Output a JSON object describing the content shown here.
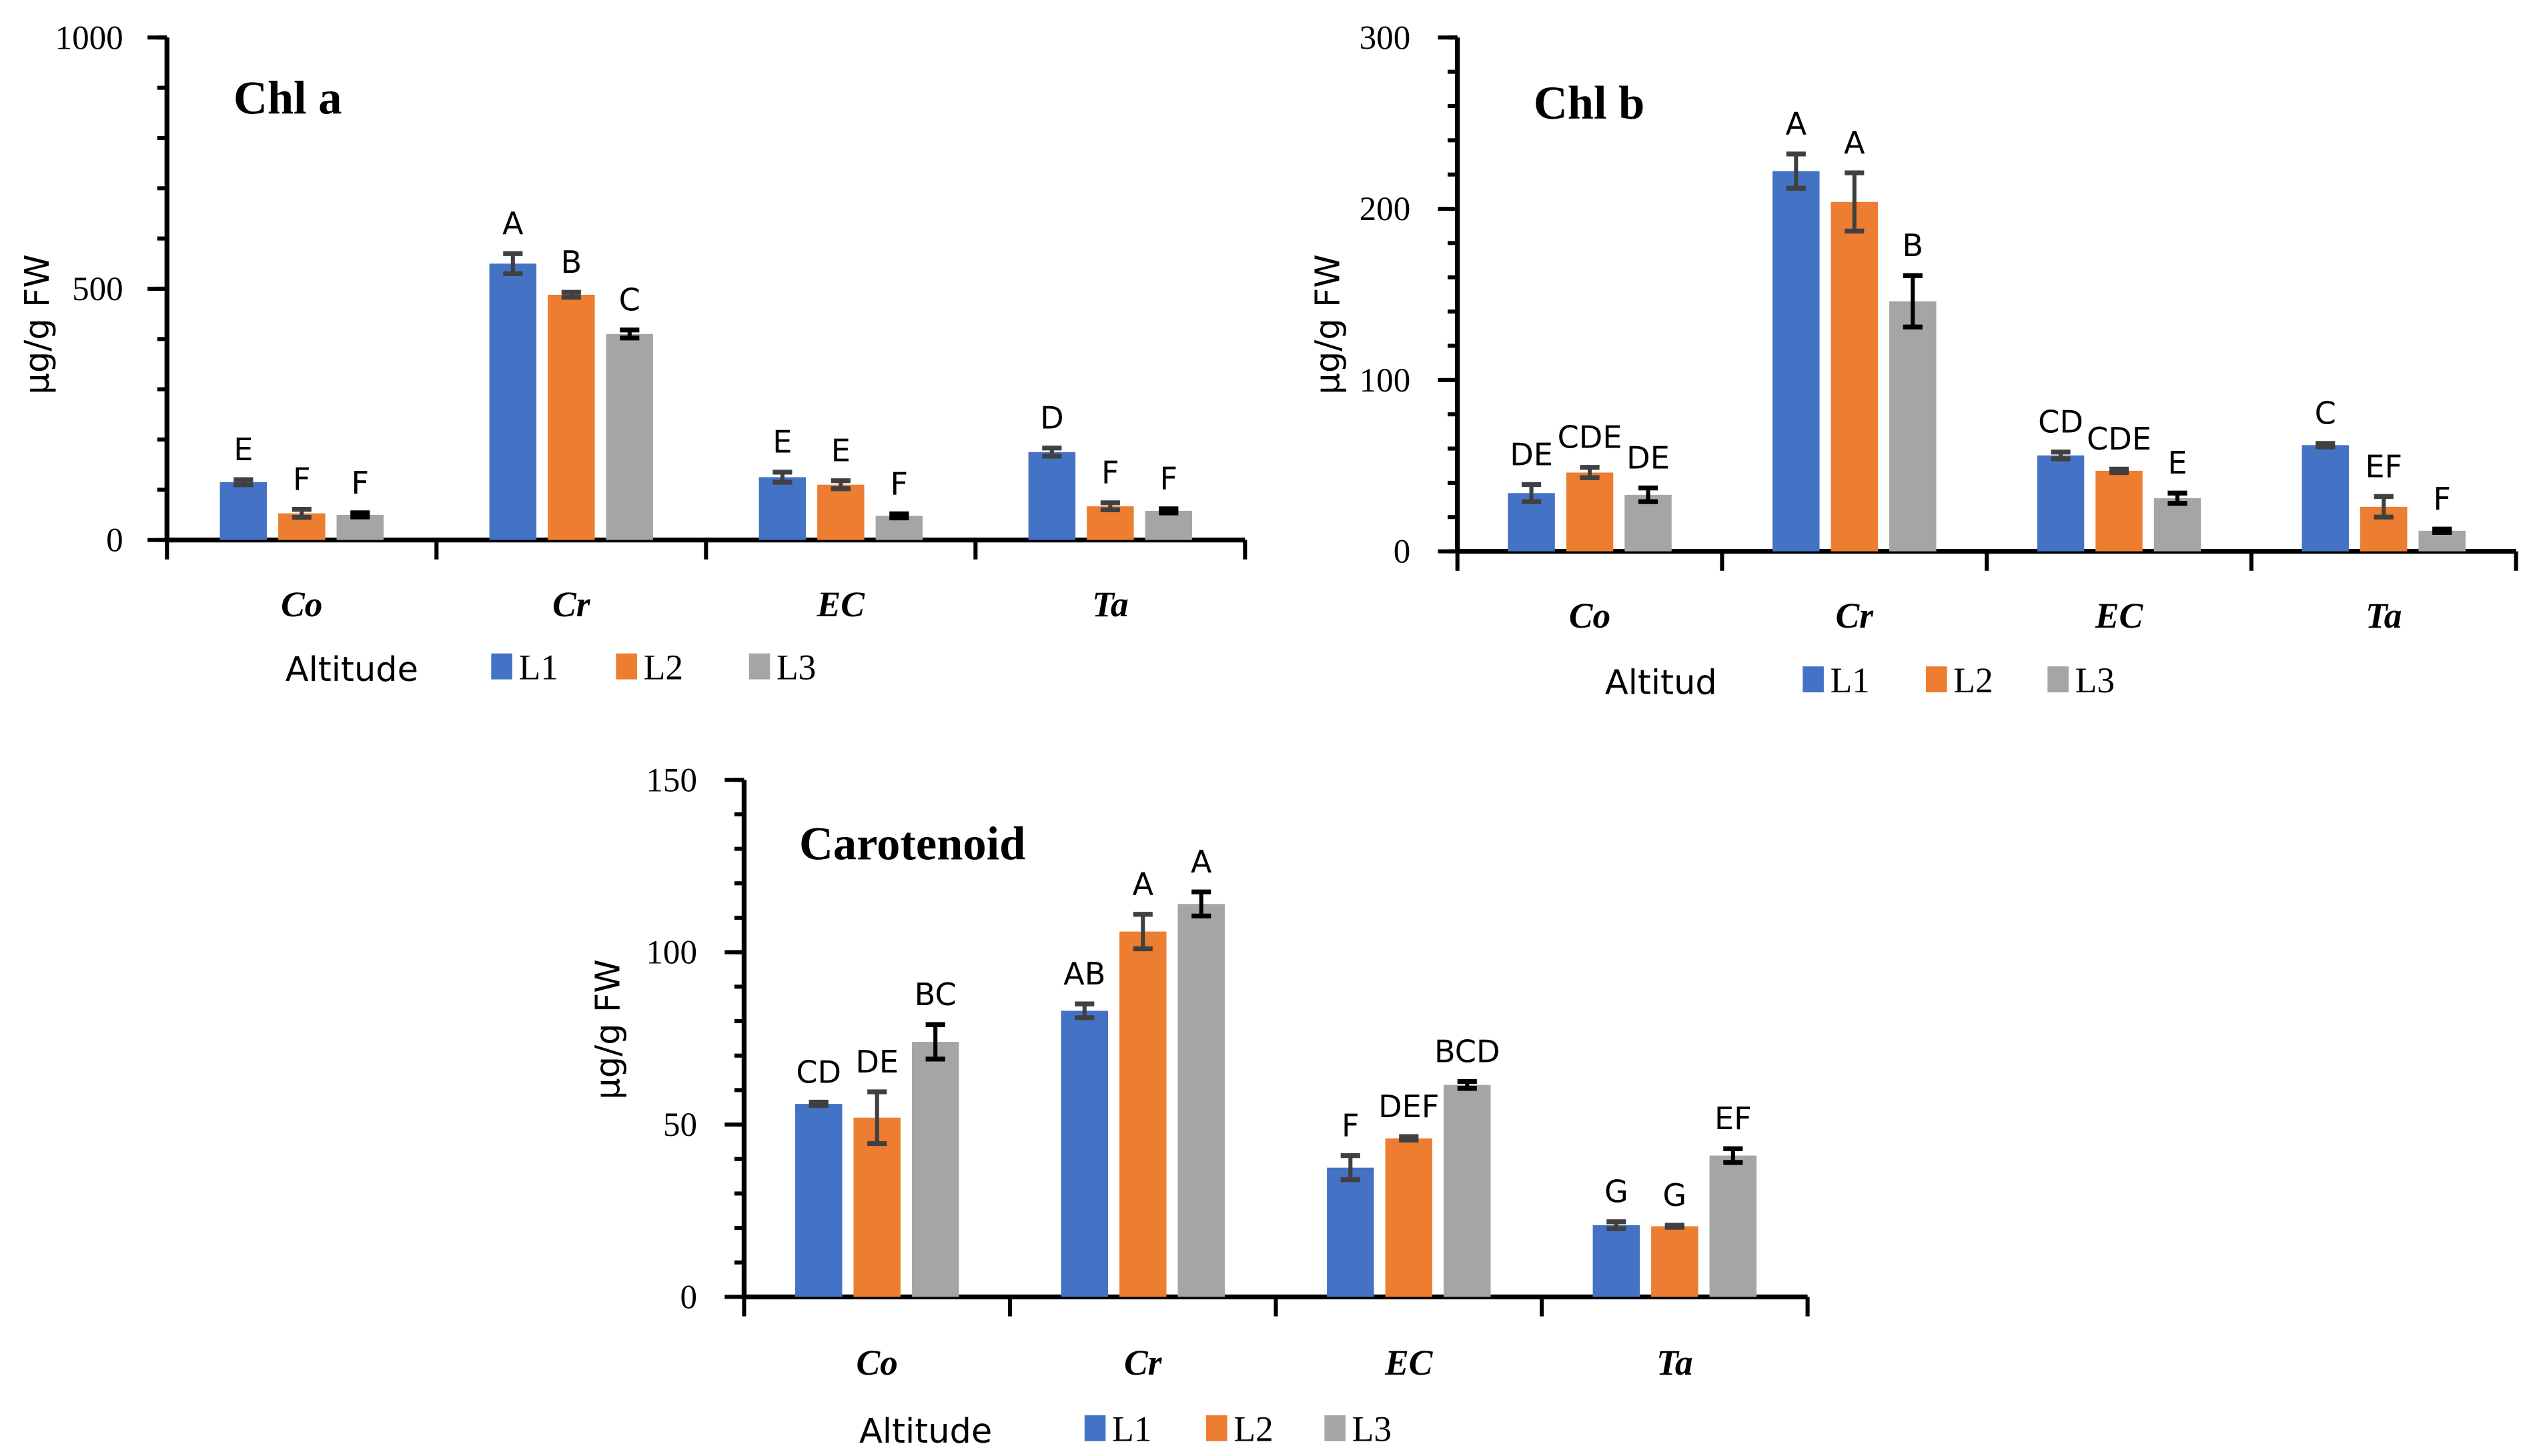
{
  "colors": {
    "L1": "#4472C4",
    "L2": "#ED7D31",
    "L3": "#A5A5A5",
    "error_bar": "#404040"
  },
  "chart_data": [
    {
      "type": "bar",
      "title": "Chl a",
      "ylabel": "µg/g FW",
      "ylim": [
        0,
        1000
      ],
      "yticks": [
        "0",
        "500",
        "1000"
      ],
      "minor_tick_step": 100,
      "categories": [
        "Co",
        "Cr",
        "EC",
        "Ta"
      ],
      "legend": {
        "title": "Altitude",
        "placement": "bottom"
      },
      "series": [
        {
          "name": "L1",
          "values": [
            115,
            550,
            125,
            175
          ],
          "errors": [
            5,
            20,
            10,
            8
          ],
          "labels": [
            "E",
            "A",
            "E",
            "D"
          ]
        },
        {
          "name": "L2",
          "values": [
            53,
            488,
            110,
            67
          ],
          "errors": [
            8,
            5,
            8,
            7
          ],
          "labels": [
            "F",
            "B",
            "E",
            "F"
          ]
        },
        {
          "name": "L3",
          "values": [
            50,
            410,
            48,
            58
          ],
          "errors": [
            4,
            8,
            4,
            4
          ],
          "labels": [
            "F",
            "C",
            "F",
            "F"
          ]
        }
      ]
    },
    {
      "type": "bar",
      "title": "Chl b",
      "ylabel": "µg/g FW",
      "ylim": [
        0,
        300
      ],
      "yticks": [
        "0",
        "100",
        "200",
        "300"
      ],
      "minor_tick_step": 20,
      "categories": [
        "Co",
        "Cr",
        "EC",
        "Ta"
      ],
      "legend": {
        "title": "Altitud",
        "placement": "bottom"
      },
      "series": [
        {
          "name": "L1",
          "values": [
            34,
            222,
            56,
            62
          ],
          "errors": [
            5,
            10,
            2,
            1
          ],
          "labels": [
            "DE",
            "A",
            "CD",
            "C"
          ]
        },
        {
          "name": "L2",
          "values": [
            46,
            204,
            47,
            26
          ],
          "errors": [
            3,
            17,
            1,
            6
          ],
          "labels": [
            "CDE",
            "A",
            "CDE",
            "EF"
          ]
        },
        {
          "name": "L3",
          "values": [
            33,
            146,
            31,
            12
          ],
          "errors": [
            4,
            15,
            3,
            1
          ],
          "labels": [
            "DE",
            "B",
            "E",
            "F"
          ]
        }
      ]
    },
    {
      "type": "bar",
      "title": "Carotenoid",
      "ylabel": "µg/g FW",
      "ylim": [
        0,
        150
      ],
      "yticks": [
        "0",
        "50",
        "100",
        "150"
      ],
      "minor_tick_step": 10,
      "categories": [
        "Co",
        "Cr",
        "EC",
        "Ta"
      ],
      "legend": {
        "title": "Altitude",
        "placement": "bottom"
      },
      "series": [
        {
          "name": "L1",
          "values": [
            56,
            83,
            37.5,
            20.8
          ],
          "errors": [
            0.5,
            2,
            3.5,
            1
          ],
          "labels": [
            "CD",
            "AB",
            "F",
            "G"
          ]
        },
        {
          "name": "L2",
          "values": [
            52,
            106,
            46,
            20.5
          ],
          "errors": [
            7.5,
            5,
            0.5,
            0.3
          ],
          "labels": [
            "DE",
            "A",
            "DEF",
            "G"
          ]
        },
        {
          "name": "L3",
          "values": [
            74,
            114,
            61.5,
            41
          ],
          "errors": [
            5,
            3.5,
            1,
            2
          ],
          "labels": [
            "BC",
            "A",
            "BCD",
            "EF"
          ]
        }
      ]
    }
  ]
}
